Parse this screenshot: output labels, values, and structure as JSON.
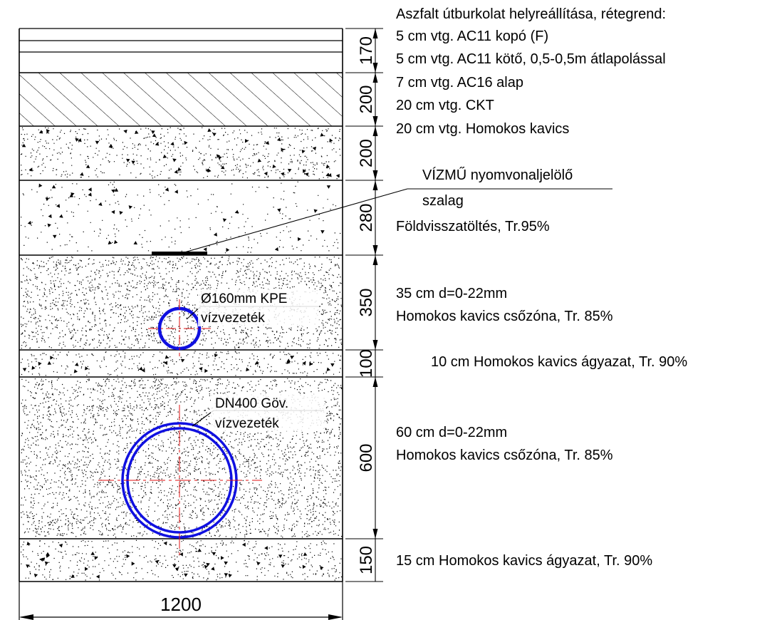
{
  "layers": [
    {
      "thickness": "170",
      "pattern": "asphalt"
    },
    {
      "thickness": "200",
      "pattern": "hatch"
    },
    {
      "thickness": "200",
      "pattern": "stipple-dense"
    },
    {
      "thickness": "280",
      "pattern": "stipple-sparse"
    },
    {
      "thickness": "350",
      "pattern": "sand"
    },
    {
      "thickness": "100",
      "pattern": "stipple-dense"
    },
    {
      "thickness": "600",
      "pattern": "sand"
    },
    {
      "thickness": "150",
      "pattern": "stipple-dense"
    }
  ],
  "width_dimension": "1200",
  "asphalt_notes": [
    "Aszfalt útburkolat helyreállítása, rétegrend:",
    "5 cm vtg. AC11 kopó (F)",
    "5 cm vtg. AC11 kötő, 0,5-0,5m átlapolással",
    "7 cm vtg. AC16 alap",
    "20 cm vtg. CKT",
    "20 cm vtg. Homokos kavics"
  ],
  "tape_label": {
    "line1": "VÍZMŰ nyomvonaljelölő",
    "line2": "szalag"
  },
  "backfill_note": "Földvisszatöltés, Tr.95%",
  "upper_zone_note": {
    "line1": "35 cm d=0-22mm",
    "line2": "Homokos kavics csőzóna, Tr. 85%"
  },
  "upper_bedding_note": "10 cm Homokos kavics ágyazat, Tr. 90%",
  "lower_zone_note": {
    "line1": "60 cm d=0-22mm",
    "line2": "Homokos kavics csőzóna, Tr. 85%"
  },
  "lower_bedding_note": "15 cm Homokos kavics ágyazat, Tr. 90%",
  "small_pipe": {
    "line1": "Ø160mm KPE",
    "line2": "vízvezeték"
  },
  "large_pipe": {
    "line1": "DN400 Göv.",
    "line2": "vízvezeték"
  },
  "colors": {
    "pipe": "#1010e0",
    "centerline": "#e01010",
    "line": "#000000"
  }
}
